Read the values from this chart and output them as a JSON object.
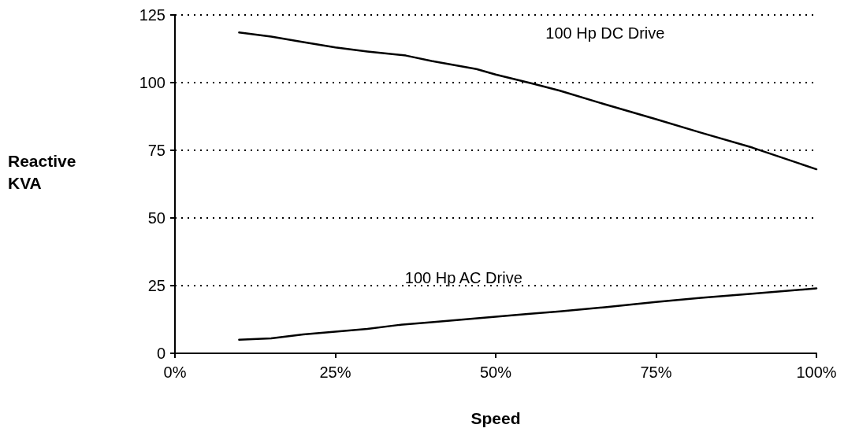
{
  "chart_data": {
    "type": "line",
    "xlabel": "Speed",
    "ylabel": "Reactive KVA",
    "xlim": [
      0,
      100
    ],
    "xticks": [
      {
        "value": 0,
        "label": "0%"
      },
      {
        "value": 25,
        "label": "25%"
      },
      {
        "value": 50,
        "label": "50%"
      },
      {
        "value": 75,
        "label": "75%"
      },
      {
        "value": 100,
        "label": "100%"
      }
    ],
    "ylim": [
      0,
      125
    ],
    "yticks": [
      0,
      25,
      50,
      75,
      100,
      125
    ],
    "grid": "y",
    "marker": "none",
    "line_style": "solid",
    "series": [
      {
        "name": "100 Hp DC Drive",
        "color": "#000000",
        "x": [
          10,
          15,
          20,
          25,
          30,
          36,
          40,
          47,
          50,
          56,
          60,
          67,
          75,
          82,
          90,
          100
        ],
        "values": [
          118.5,
          117,
          115,
          113,
          111.5,
          110,
          108,
          105,
          103,
          99.5,
          97,
          92,
          86.5,
          81.5,
          76,
          68
        ]
      },
      {
        "name": "100 Hp AC Drive",
        "color": "#000000",
        "x": [
          10,
          15,
          20,
          25,
          30,
          35,
          40,
          45,
          50,
          55,
          60,
          67,
          75,
          82,
          90,
          100
        ],
        "values": [
          5,
          5.5,
          7,
          8,
          9,
          10.5,
          11.5,
          12.5,
          13.5,
          14.5,
          15.5,
          17,
          19,
          20.5,
          22,
          24
        ]
      }
    ]
  }
}
